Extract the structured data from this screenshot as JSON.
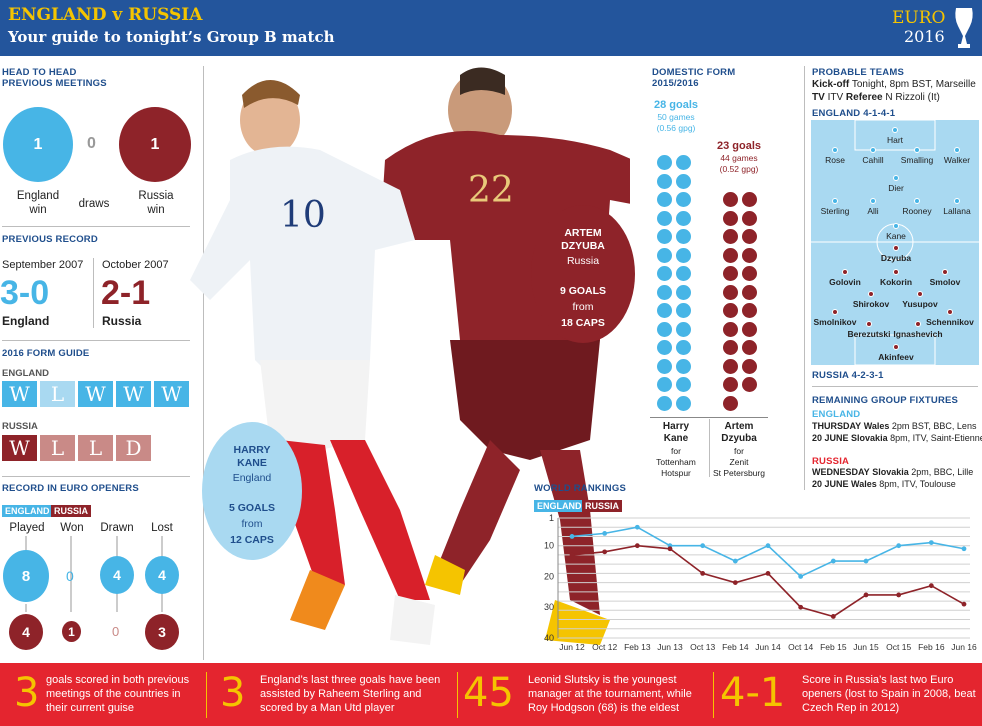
{
  "header": {
    "title": "ENGLAND v RUSSIA",
    "subtitle": "Your guide to tonight’s Group B match",
    "logo_line1": "EURO",
    "logo_line2": "2016"
  },
  "colors": {
    "england": "#47b5e6",
    "russia": "#8e2329",
    "header_blue": "#23559c",
    "facts_red": "#e4252f",
    "accent_yellow": "#f5c400"
  },
  "head_to_head": {
    "title_line1": "HEAD TO HEAD",
    "title_line2": "PREVIOUS MEETINGS",
    "england_wins": "1",
    "draws": "0",
    "russia_wins": "1",
    "england_label_1": "England",
    "england_label_2": "win",
    "draws_label": "draws",
    "russia_label_1": "Russia",
    "russia_label_2": "win"
  },
  "previous_record": {
    "title": "PREVIOUS RECORD",
    "left": {
      "date": "September 2007",
      "score": "3-0",
      "winner": "England"
    },
    "right": {
      "date": "October 2007",
      "score": "2-1",
      "winner": "Russia"
    }
  },
  "form_guide": {
    "title": "2016 FORM GUIDE",
    "england_label": "ENGLAND",
    "england": [
      "W",
      "L",
      "W",
      "W",
      "W"
    ],
    "russia_label": "RUSSIA",
    "russia": [
      "W",
      "L",
      "L",
      "D"
    ]
  },
  "euro_openers": {
    "title": "RECORD IN EURO OPENERS",
    "tag_england": "ENGLAND",
    "tag_russia": "RUSSIA",
    "headers": [
      "Played",
      "Won",
      "Drawn",
      "Lost"
    ],
    "england": [
      "8",
      "0",
      "4",
      "4"
    ],
    "russia": [
      "4",
      "1",
      "0",
      "3"
    ]
  },
  "kane": {
    "name_1": "HARRY",
    "name_2": "KANE",
    "team": "England",
    "goals": "5 GOALS",
    "from": "from",
    "caps": "12 CAPS",
    "shirt": "10"
  },
  "dzyuba": {
    "name_1": "ARTEM",
    "name_2": "DZYUBA",
    "team": "Russia",
    "goals": "9 GOALS",
    "from": "from",
    "caps": "18 CAPS",
    "shirt": "22"
  },
  "domestic_form": {
    "title_1": "DOMESTIC FORM",
    "title_2": "2015/2016",
    "kane": {
      "goals": "28 goals",
      "games": "50 games",
      "gpg": "(0.56 gpg)",
      "goal_count": 28,
      "name_1": "Harry",
      "name_2": "Kane",
      "for": "for",
      "club_1": "Tottenham",
      "club_2": "Hotspur"
    },
    "dzyuba": {
      "goals": "23 goals",
      "games": "44 games",
      "gpg": "(0.52 gpg)",
      "goal_count": 23,
      "name_1": "Artem",
      "name_2": "Dzyuba",
      "for": "for",
      "club_1": "Zenit",
      "club_2": "St Petersburg"
    }
  },
  "probable_teams": {
    "title": "PROBABLE TEAMS",
    "kickoff_label": "Kick-off",
    "kickoff": "Tonight, 8pm BST, Marseille",
    "tv_label": "TV",
    "tv": "ITV",
    "referee_label": "Referee",
    "referee": "N Rizzoli (It)",
    "england_formation": "ENGLAND 4-1-4-1",
    "russia_formation": "RUSSIA 4-2-3-1",
    "england_players": [
      "Hart",
      "Rose",
      "Cahill",
      "Smalling",
      "Walker",
      "Dier",
      "Sterling",
      "Alli",
      "Rooney",
      "Lallana",
      "Kane"
    ],
    "russia_players": [
      "Dzyuba",
      "Golovin",
      "Kokorin",
      "Smolov",
      "Shirokov",
      "Yusupov",
      "Smolnikov",
      "Schennikov",
      "Berezutski",
      "Ignashevich",
      "Akinfeev"
    ]
  },
  "fixtures": {
    "title": "REMAINING GROUP FIXTURES",
    "england_label": "ENGLAND",
    "england": [
      {
        "date": "THURSDAY",
        "team": "Wales",
        "details": "2pm BST, BBC, Lens"
      },
      {
        "date": "20 JUNE",
        "team": "Slovakia",
        "details": "8pm, ITV, Saint-Etienne"
      }
    ],
    "russia_label": "RUSSIA",
    "russia": [
      {
        "date": "WEDNESDAY",
        "team": "Slovakia",
        "details": "2pm, BBC, Lille"
      },
      {
        "date": "20 JUNE",
        "team": "Wales",
        "details": "8pm, ITV, Toulouse"
      }
    ]
  },
  "chart_data": {
    "type": "line",
    "title": "WORLD RANKINGS",
    "x": [
      "Jun 12",
      "Oct 12",
      "Feb 13",
      "Jun 13",
      "Oct 13",
      "Feb 14",
      "Jun 14",
      "Oct 14",
      "Feb 15",
      "Jun 15",
      "Oct 15",
      "Feb 16",
      "Jun 16"
    ],
    "y_ticks": [
      "1",
      "10",
      "20",
      "30",
      "40"
    ],
    "ylim": [
      1,
      40
    ],
    "y_inverted": true,
    "grid": true,
    "legend": "top-left",
    "series": [
      {
        "name": "ENGLAND",
        "color": "#47b5e6",
        "values": [
          7,
          6,
          4,
          10,
          10,
          15,
          10,
          20,
          15,
          15,
          10,
          9,
          11
        ]
      },
      {
        "name": "RUSSIA",
        "color": "#8e2329",
        "values": [
          13,
          12,
          10,
          11,
          19,
          22,
          19,
          30,
          33,
          26,
          26,
          23,
          29
        ]
      }
    ]
  },
  "facts": [
    {
      "number": "3",
      "text": "goals scored in both previous meetings of the countries in their current guise"
    },
    {
      "number": "3",
      "text": "England’s last three goals have been assisted by Raheem Sterling and scored by a Man Utd player"
    },
    {
      "number": "45",
      "text": "Leonid Slutsky is the youngest manager at the tournament, while Roy Hodgson (68) is the eldest"
    },
    {
      "number": "4-1",
      "text": "Score in Russia’s last two Euro openers (lost to Spain in 2008, beat Czech Rep in 2012)"
    }
  ]
}
